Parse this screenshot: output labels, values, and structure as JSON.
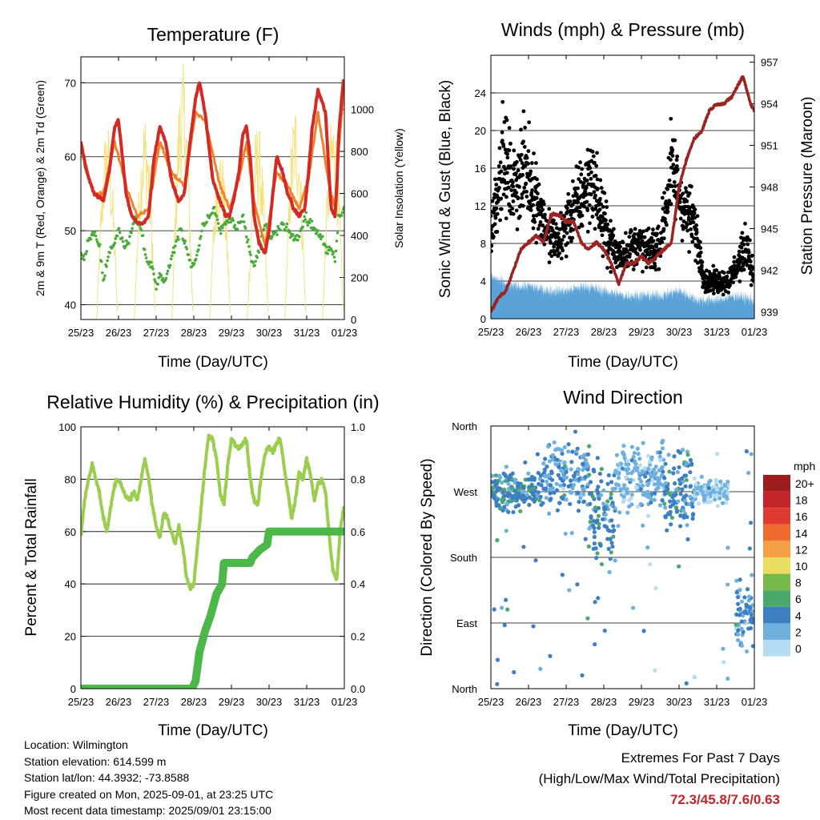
{
  "x_ticks": [
    "25/23",
    "26/23",
    "27/23",
    "28/23",
    "29/23",
    "30/23",
    "31/23",
    "01/23"
  ],
  "xlabel": "Time (Day/UTC)",
  "chart_data": [
    {
      "type": "line",
      "title": "Temperature (F)",
      "xlabel": "Time (Day/UTC)",
      "ylabel": "2m & 9m T (Red, Orange) & 2m Td (Green)",
      "ylabel_right": "Solar Insolation (Yellow)",
      "ylim": [
        38,
        73.5
      ],
      "yticks": [
        40,
        50,
        60,
        70
      ],
      "ylim_right": [
        0,
        1250
      ],
      "yticks_right": [
        0,
        200,
        400,
        600,
        800,
        1000
      ],
      "x_days": [
        0,
        7
      ],
      "series": [
        {
          "axis": "left",
          "color": "#d42a26",
          "width": 4,
          "x": [
            0,
            0.15,
            0.35,
            0.6,
            0.75,
            0.9,
            1.0,
            1.1,
            1.2,
            1.35,
            1.5,
            1.65,
            1.8,
            1.95,
            2.1,
            2.25,
            2.4,
            2.6,
            2.75,
            2.9,
            3.05,
            3.15,
            3.3,
            3.5,
            3.7,
            3.85,
            3.95,
            4.05,
            4.2,
            4.3,
            4.4,
            4.5,
            4.6,
            4.75,
            4.9,
            5.0,
            5.1,
            5.2,
            5.35,
            5.5,
            5.65,
            5.8,
            5.95,
            6.05,
            6.15,
            6.3,
            6.5,
            6.6,
            6.65,
            6.75,
            6.8,
            6.85,
            6.95,
            7.0
          ],
          "y": [
            62,
            58,
            55,
            54,
            58,
            64,
            65,
            60,
            55,
            52,
            51,
            51,
            52,
            60,
            64,
            62,
            57,
            54,
            55,
            62,
            68,
            70,
            66,
            57,
            54,
            52,
            52,
            54,
            58,
            63,
            64,
            60,
            52,
            48,
            47,
            50,
            55,
            60,
            58,
            55,
            53,
            52,
            53,
            58,
            64,
            69,
            66,
            57,
            53,
            52,
            56,
            63,
            69,
            71
          ]
        },
        {
          "axis": "left",
          "color": "#f0832a",
          "width": 2,
          "x": [
            0,
            0.35,
            0.6,
            0.9,
            1.2,
            1.5,
            1.8,
            2.1,
            2.4,
            2.75,
            3.05,
            3.3,
            3.7,
            3.95,
            4.2,
            4.4,
            4.6,
            4.9,
            5.2,
            5.5,
            5.8,
            6.05,
            6.3,
            6.6,
            6.75,
            6.85,
            6.95,
            7.0
          ],
          "y": [
            61,
            55,
            55,
            62,
            56,
            52,
            53,
            62,
            58,
            56,
            66,
            65,
            56,
            53,
            57,
            62,
            54,
            48,
            58,
            56,
            53,
            57,
            66,
            56,
            53,
            61,
            67,
            69
          ]
        },
        {
          "axis": "left",
          "color": "#4aaa3c",
          "width": 2,
          "dotted": true,
          "x": [
            0,
            0.1,
            0.2,
            0.35,
            0.5,
            0.6,
            0.7,
            0.85,
            1.0,
            1.15,
            1.3,
            1.45,
            1.6,
            1.75,
            1.9,
            2.0,
            2.1,
            2.2,
            2.35,
            2.5,
            2.65,
            2.8,
            2.95,
            3.1,
            3.25,
            3.4,
            3.55,
            3.7,
            3.85,
            4.0,
            4.15,
            4.3,
            4.45,
            4.6,
            4.75,
            4.9,
            5.05,
            5.2,
            5.35,
            5.5,
            5.65,
            5.8,
            5.95,
            6.1,
            6.25,
            6.4,
            6.55,
            6.65,
            6.75,
            6.85,
            7.0
          ],
          "y": [
            47,
            46,
            49,
            50,
            48,
            43,
            46,
            48,
            50,
            48,
            49,
            52,
            50,
            46,
            45,
            42,
            44,
            43,
            45,
            48,
            50,
            48,
            45,
            47,
            51,
            52,
            53,
            50,
            51,
            52,
            50,
            52,
            48,
            45,
            48,
            51,
            49,
            50,
            51,
            50,
            49,
            49,
            52,
            51,
            50,
            49,
            47,
            48,
            46,
            52,
            53
          ]
        },
        {
          "axis": "right",
          "color": "#f4e27c",
          "width": 1,
          "kind": "solar",
          "days": [
            0,
            1,
            2,
            3,
            4,
            5,
            6
          ],
          "peaks": [
            950,
            1000,
            1230,
            850,
            950,
            1050,
            1010
          ]
        }
      ]
    },
    {
      "type": "scatter",
      "title": "Winds (mph) & Pressure (mb)",
      "xlabel": "Time (Day/UTC)",
      "ylabel": "Sonic Wind & Gust (Blue, Black)",
      "ylabel_right": "Station Pressure (Maroon)",
      "ylim": [
        0,
        28
      ],
      "yticks": [
        0,
        4,
        8,
        12,
        16,
        20,
        24
      ],
      "ylim_right": [
        938.5,
        957.5
      ],
      "yticks_right": [
        939,
        942,
        945,
        948,
        951,
        954,
        957
      ],
      "series": [
        {
          "name": "Gust",
          "color": "#000000",
          "kind": "scatter",
          "x": [
            0,
            0.3,
            0.6,
            0.9,
            1.2,
            1.5,
            1.8,
            2.1,
            2.4,
            2.7,
            3.0,
            3.3,
            3.6,
            3.9,
            4.2,
            4.5,
            4.8,
            5.1,
            5.4,
            5.7,
            6.0,
            6.3,
            6.6,
            6.8,
            7.0
          ],
          "y": [
            9,
            17,
            14,
            16,
            13,
            9,
            8,
            11,
            13,
            15,
            10,
            7,
            7,
            8,
            7,
            8,
            16,
            12,
            10,
            4,
            4,
            4,
            6,
            8,
            4
          ]
        },
        {
          "name": "Wind",
          "color": "#5aa3d8",
          "kind": "band",
          "x": [
            0,
            0.5,
            1.0,
            1.5,
            2.0,
            2.5,
            3.0,
            3.5,
            4.0,
            4.5,
            5.0,
            5.5,
            6.0,
            6.5,
            7.0
          ],
          "y": [
            4.5,
            3.5,
            3.5,
            3,
            3,
            3.5,
            3,
            2.5,
            2.5,
            2.5,
            3,
            2,
            2,
            2.5,
            2
          ]
        },
        {
          "name": "Pressure",
          "color": "#9b2423",
          "kind": "line",
          "axis": "right",
          "x": [
            0,
            0.2,
            0.4,
            0.6,
            0.8,
            1.0,
            1.2,
            1.4,
            1.6,
            1.8,
            2.0,
            2.2,
            2.4,
            2.6,
            2.8,
            3.0,
            3.2,
            3.4,
            3.6,
            3.8,
            4.0,
            4.2,
            4.4,
            4.6,
            4.8,
            5.0,
            5.2,
            5.4,
            5.6,
            5.8,
            6.0,
            6.2,
            6.4,
            6.6,
            6.7,
            6.8,
            6.9,
            7.0
          ],
          "y": [
            939,
            940,
            940.5,
            942,
            943.5,
            944,
            944.5,
            944,
            946,
            946,
            945.5,
            945.5,
            944,
            943.5,
            944,
            943.5,
            942.5,
            941,
            942.5,
            942.5,
            943,
            942.5,
            943,
            943.5,
            944,
            948,
            950,
            951.5,
            952,
            953.5,
            954,
            954,
            954.5,
            955.5,
            956,
            955,
            954,
            953.5
          ]
        }
      ]
    },
    {
      "type": "line",
      "title": "Relative Humidity (%) & Precipitation (in)",
      "xlabel": "Time (Day/UTC)",
      "ylabel": "Percent & Total Rainfall",
      "ylim": [
        0,
        100
      ],
      "yticks": [
        0,
        20,
        40,
        60,
        80,
        100
      ],
      "ylim_right": [
        0,
        1
      ],
      "yticks_right": [
        0.0,
        0.2,
        0.4,
        0.6,
        0.8,
        1.0
      ],
      "series": [
        {
          "name": "RH",
          "color": "#9bce4f",
          "width": 4,
          "axis": "left",
          "x": [
            0,
            0.1,
            0.2,
            0.3,
            0.4,
            0.5,
            0.6,
            0.7,
            0.8,
            0.9,
            1.0,
            1.1,
            1.2,
            1.3,
            1.4,
            1.5,
            1.6,
            1.7,
            1.8,
            1.9,
            2.0,
            2.1,
            2.2,
            2.3,
            2.4,
            2.5,
            2.6,
            2.7,
            2.8,
            2.9,
            3.0,
            3.1,
            3.2,
            3.3,
            3.4,
            3.5,
            3.6,
            3.7,
            3.8,
            3.9,
            4.0,
            4.1,
            4.2,
            4.3,
            4.4,
            4.5,
            4.6,
            4.7,
            4.8,
            4.9,
            5.0,
            5.1,
            5.2,
            5.3,
            5.4,
            5.5,
            5.6,
            5.7,
            5.8,
            5.9,
            6.0,
            6.1,
            6.2,
            6.3,
            6.4,
            6.5,
            6.6,
            6.7,
            6.8,
            6.9,
            7.0
          ],
          "y": [
            58,
            72,
            80,
            86,
            80,
            74,
            65,
            60,
            70,
            78,
            80,
            77,
            73,
            72,
            75,
            72,
            80,
            88,
            80,
            70,
            62,
            58,
            67,
            65,
            60,
            55,
            62,
            55,
            43,
            38,
            40,
            55,
            70,
            85,
            97,
            95,
            88,
            75,
            70,
            85,
            95,
            93,
            92,
            94,
            95,
            80,
            72,
            70,
            82,
            90,
            93,
            90,
            94,
            95,
            85,
            75,
            65,
            72,
            83,
            80,
            88,
            82,
            72,
            78,
            80,
            75,
            58,
            45,
            42,
            62,
            70
          ]
        },
        {
          "name": "Precip",
          "color": "#4cb84a",
          "width": 10,
          "axis": "right",
          "x": [
            0,
            2.95,
            3.05,
            3.15,
            3.3,
            3.45,
            3.6,
            3.75,
            3.8,
            3.95,
            4.5,
            4.55,
            4.75,
            4.95,
            5.0,
            7.0
          ],
          "y": [
            0,
            0,
            0.03,
            0.14,
            0.22,
            0.28,
            0.36,
            0.4,
            0.48,
            0.48,
            0.48,
            0.5,
            0.53,
            0.55,
            0.6,
            0.6
          ]
        }
      ]
    },
    {
      "type": "scatter",
      "title": "Wind Direction",
      "xlabel": "Time (Day/UTC)",
      "ylabel": "Direction (Colored By Speed)",
      "yticks": [
        "North",
        "West",
        "South",
        "East",
        "North"
      ],
      "ylim": [
        0,
        360
      ],
      "legend_title": "mph",
      "legend_labels": [
        "20+",
        "18",
        "16",
        "14",
        "12",
        "10",
        "8",
        "6",
        "4",
        "2",
        "0"
      ],
      "legend_colors": [
        "#9e1d1d",
        "#c4252b",
        "#df3a2f",
        "#ee6a2d",
        "#f5a046",
        "#e9de5f",
        "#78ba4a",
        "#4aa86a",
        "#3d7fc1",
        "#6fb0de",
        "#b6ddf4"
      ],
      "clusters": [
        {
          "x0": 0,
          "x1": 1.4,
          "center": 270,
          "spread": 25,
          "speed": 4
        },
        {
          "x0": 1.4,
          "x1": 2.6,
          "center": 290,
          "spread": 45,
          "speed": 3
        },
        {
          "x0": 2.6,
          "x1": 3.3,
          "center": 240,
          "spread": 70,
          "speed": 4
        },
        {
          "x0": 3.3,
          "x1": 4.6,
          "center": 290,
          "spread": 45,
          "speed": 2
        },
        {
          "x0": 4.6,
          "x1": 5.4,
          "center": 270,
          "spread": 60,
          "speed": 4
        },
        {
          "x0": 5.4,
          "x1": 6.3,
          "center": 270,
          "spread": 15,
          "speed": 1
        },
        {
          "x0": 6.5,
          "x1": 7.0,
          "center": 100,
          "spread": 50,
          "speed": 3
        }
      ]
    }
  ],
  "info": {
    "location": "Location: Wilmington",
    "elevation": "Station elevation: 614.599 m",
    "latlon": "Station lat/lon: 44.3932; -73.8588",
    "created": "Figure created on Mon, 2025-09-01, at 23:25 UTC",
    "recent": "Most recent data timestamp: 2025/09/01 23:15:00"
  },
  "extremes": {
    "title": "Extremes For Past 7 Days",
    "subtitle": "(High/Low/Max Wind/Total Precipitation)",
    "values": "72.3/45.8/7.6/0.63"
  }
}
